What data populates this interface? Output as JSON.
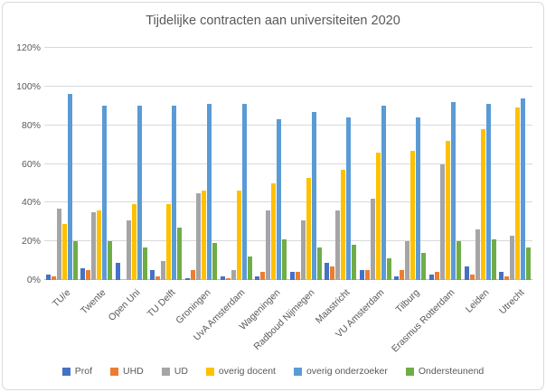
{
  "chart_data": {
    "type": "bar",
    "title": "Tijdelijke contracten aan universiteiten 2020",
    "categories": [
      "TU/e",
      "Twente",
      "Open Uni",
      "TU Delft",
      "Groningen",
      "UvA Amsterdam",
      "Wageningen",
      "Radboud Nijmegen",
      "Maastricht",
      "VU Amsterdam",
      "Tilburg",
      "Erasmus Rotterdam",
      "Leiden",
      "Utrecht"
    ],
    "series": [
      {
        "name": "Prof",
        "color": "#4472C4",
        "values": [
          3,
          6,
          9,
          5,
          1,
          2,
          2,
          4,
          9,
          5,
          2,
          3,
          7,
          4
        ]
      },
      {
        "name": "UHD",
        "color": "#ED7D31",
        "values": [
          2,
          5,
          0,
          2,
          5,
          1,
          4,
          4,
          7,
          5,
          5,
          4,
          3,
          2
        ]
      },
      {
        "name": "UD",
        "color": "#A5A5A5",
        "values": [
          37,
          35,
          31,
          10,
          45,
          5,
          36,
          31,
          36,
          42,
          20,
          60,
          26,
          23
        ]
      },
      {
        "name": "overig docent",
        "color": "#FFC000",
        "values": [
          29,
          36,
          39,
          39,
          46,
          46,
          50,
          53,
          57,
          66,
          67,
          72,
          78,
          89
        ]
      },
      {
        "name": "overig onderzoeker",
        "color": "#5B9BD5",
        "values": [
          96,
          90,
          90,
          90,
          91,
          91,
          83,
          87,
          84,
          90,
          84,
          92,
          91,
          94
        ]
      },
      {
        "name": "Ondersteunend",
        "color": "#70AD47",
        "values": [
          20,
          20,
          17,
          27,
          19,
          12,
          21,
          17,
          18,
          11,
          14,
          20,
          21,
          17
        ]
      }
    ],
    "ylabel": "",
    "xlabel": "",
    "ylim": [
      0,
      120
    ],
    "y_ticks": [
      "0%",
      "20%",
      "40%",
      "60%",
      "80%",
      "100%",
      "120%"
    ],
    "y_tick_values": [
      0,
      20,
      40,
      60,
      80,
      100,
      120
    ],
    "grid": true,
    "legend_position": "bottom"
  }
}
